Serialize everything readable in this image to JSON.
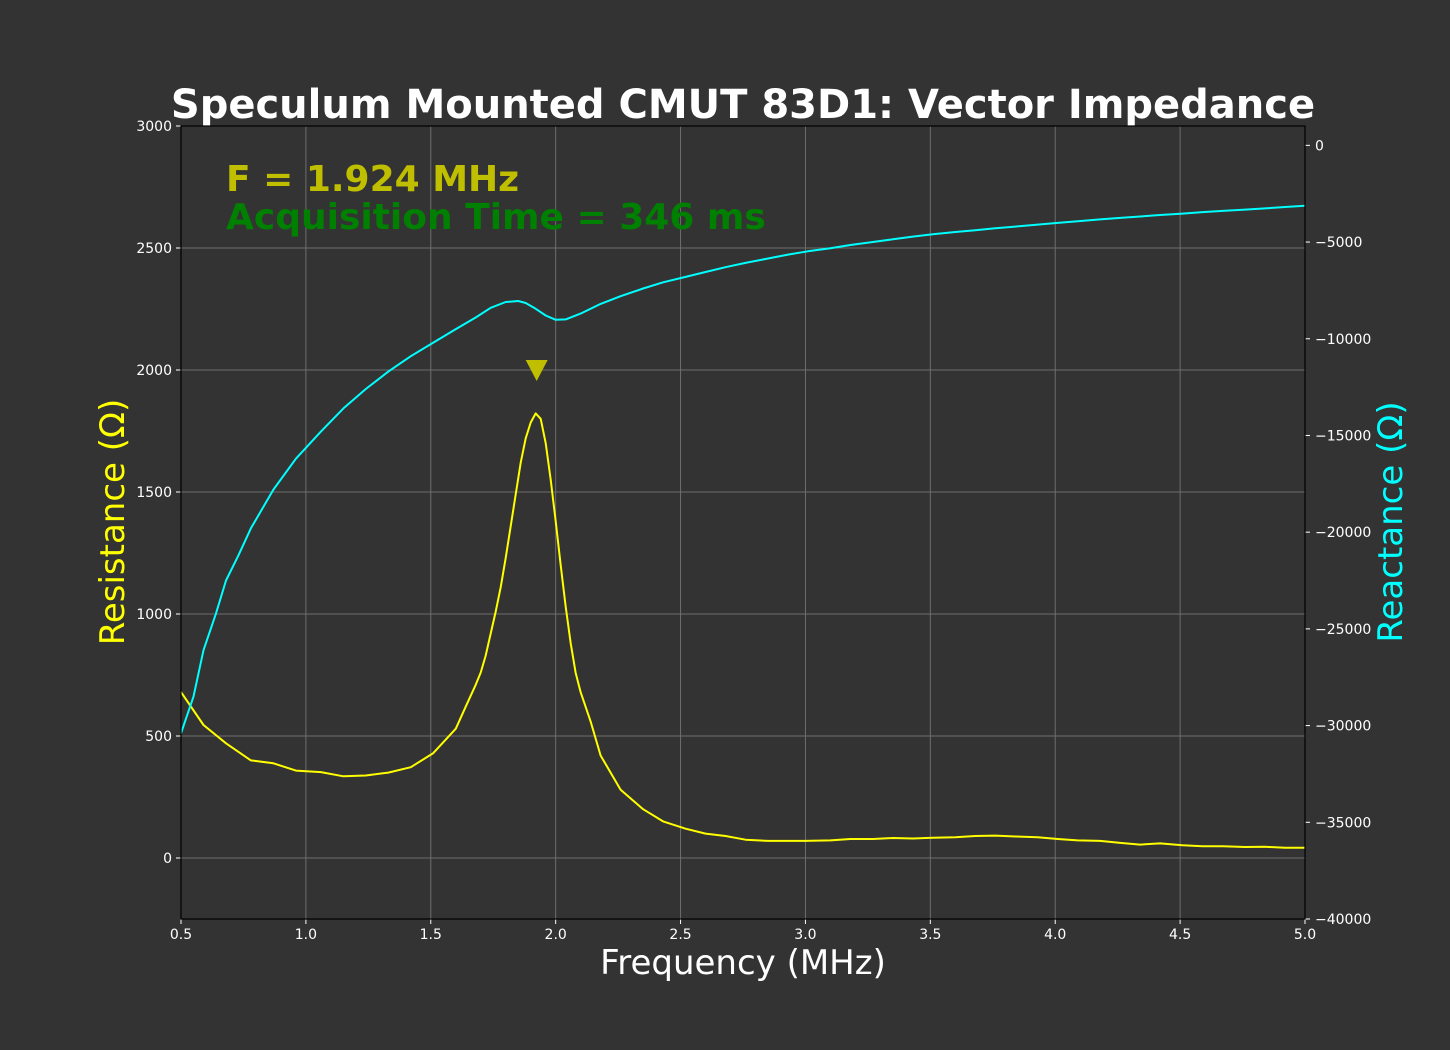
{
  "chart_data": {
    "type": "line",
    "title": "Speculum Mounted CMUT 83D1: Vector Impedance",
    "xlabel": "Frequency (MHz)",
    "ylabel": "Resistance (Ω)",
    "y2label": "Reactance (Ω)",
    "xlim": [
      0.5,
      5.0
    ],
    "ylim": [
      -250,
      3000
    ],
    "y2lim": [
      -40000,
      1000
    ],
    "x_ticks": [
      "0.5",
      "1.0",
      "1.5",
      "2.0",
      "2.5",
      "3.0",
      "3.5",
      "4.0",
      "4.5",
      "5.0"
    ],
    "y_ticks": [
      "0",
      "500",
      "1000",
      "1500",
      "2000",
      "2500",
      "3000"
    ],
    "y2_ticks": [
      "0",
      "−5000",
      "−10000",
      "−15000",
      "−20000",
      "−25000",
      "−30000",
      "−35000",
      "−40000"
    ],
    "grid": true,
    "colors": {
      "background": "#333333",
      "resistance": "#ffff00",
      "reactance": "#00ffff",
      "frequency_annotation": "#bfbf00",
      "marker": "#bfbf00",
      "acquisition_annotation": "#008000",
      "grid": "#6e6e6e"
    },
    "annotations": {
      "frequency": "F = 1.924 MHz",
      "acquisition": "Acquisition Time = 346 ms"
    },
    "marker": {
      "x": 1.924,
      "y": 2000,
      "shape": "triangle-down"
    },
    "series": [
      {
        "name": "Resistance",
        "axis": "left",
        "points": [
          [
            0.5,
            680
          ],
          [
            0.59,
            545
          ],
          [
            0.68,
            470
          ],
          [
            0.78,
            400
          ],
          [
            0.87,
            388
          ],
          [
            0.96,
            358
          ],
          [
            1.06,
            352
          ],
          [
            1.15,
            335
          ],
          [
            1.24,
            338
          ],
          [
            1.33,
            350
          ],
          [
            1.42,
            372
          ],
          [
            1.51,
            430
          ],
          [
            1.6,
            530
          ],
          [
            1.64,
            620
          ],
          [
            1.68,
            710
          ],
          [
            1.7,
            760
          ],
          [
            1.72,
            830
          ],
          [
            1.74,
            920
          ],
          [
            1.76,
            1010
          ],
          [
            1.78,
            1110
          ],
          [
            1.8,
            1230
          ],
          [
            1.82,
            1360
          ],
          [
            1.84,
            1490
          ],
          [
            1.86,
            1620
          ],
          [
            1.88,
            1720
          ],
          [
            1.9,
            1785
          ],
          [
            1.92,
            1822
          ],
          [
            1.94,
            1800
          ],
          [
            1.96,
            1700
          ],
          [
            1.98,
            1550
          ],
          [
            2.0,
            1380
          ],
          [
            2.02,
            1200
          ],
          [
            2.04,
            1030
          ],
          [
            2.06,
            880
          ],
          [
            2.08,
            760
          ],
          [
            2.1,
            680
          ],
          [
            2.14,
            560
          ],
          [
            2.18,
            420
          ],
          [
            2.26,
            280
          ],
          [
            2.35,
            200
          ],
          [
            2.43,
            150
          ],
          [
            2.52,
            120
          ],
          [
            2.6,
            100
          ],
          [
            2.68,
            90
          ],
          [
            2.76,
            75
          ],
          [
            2.85,
            70
          ],
          [
            3.0,
            70
          ],
          [
            3.1,
            72
          ],
          [
            3.18,
            78
          ],
          [
            3.27,
            78
          ],
          [
            3.35,
            82
          ],
          [
            3.43,
            80
          ],
          [
            3.51,
            83
          ],
          [
            3.6,
            85
          ],
          [
            3.68,
            90
          ],
          [
            3.76,
            92
          ],
          [
            3.84,
            88
          ],
          [
            3.93,
            85
          ],
          [
            4.01,
            78
          ],
          [
            4.09,
            72
          ],
          [
            4.18,
            70
          ],
          [
            4.26,
            62
          ],
          [
            4.34,
            55
          ],
          [
            4.42,
            60
          ],
          [
            4.51,
            52
          ],
          [
            4.59,
            48
          ],
          [
            4.67,
            48
          ],
          [
            4.76,
            45
          ],
          [
            4.84,
            46
          ],
          [
            4.92,
            42
          ],
          [
            5.0,
            42
          ]
        ]
      },
      {
        "name": "Reactance",
        "axis": "right",
        "points": [
          [
            0.5,
            -30400
          ],
          [
            0.55,
            -28500
          ],
          [
            0.59,
            -26100
          ],
          [
            0.64,
            -24200
          ],
          [
            0.68,
            -22500
          ],
          [
            0.73,
            -21200
          ],
          [
            0.78,
            -19800
          ],
          [
            0.87,
            -17800
          ],
          [
            0.96,
            -16200
          ],
          [
            1.06,
            -14800
          ],
          [
            1.15,
            -13600
          ],
          [
            1.24,
            -12600
          ],
          [
            1.33,
            -11700
          ],
          [
            1.42,
            -10900
          ],
          [
            1.51,
            -10200
          ],
          [
            1.6,
            -9500
          ],
          [
            1.68,
            -8900
          ],
          [
            1.74,
            -8400
          ],
          [
            1.8,
            -8100
          ],
          [
            1.85,
            -8050
          ],
          [
            1.88,
            -8150
          ],
          [
            1.92,
            -8450
          ],
          [
            1.96,
            -8800
          ],
          [
            2.0,
            -9020
          ],
          [
            2.04,
            -9000
          ],
          [
            2.1,
            -8700
          ],
          [
            2.18,
            -8200
          ],
          [
            2.26,
            -7800
          ],
          [
            2.35,
            -7400
          ],
          [
            2.43,
            -7080
          ],
          [
            2.52,
            -6800
          ],
          [
            2.6,
            -6550
          ],
          [
            2.68,
            -6300
          ],
          [
            2.76,
            -6080
          ],
          [
            2.85,
            -5850
          ],
          [
            2.93,
            -5650
          ],
          [
            3.01,
            -5480
          ],
          [
            3.1,
            -5320
          ],
          [
            3.18,
            -5150
          ],
          [
            3.27,
            -5000
          ],
          [
            3.35,
            -4860
          ],
          [
            3.43,
            -4720
          ],
          [
            3.51,
            -4600
          ],
          [
            3.6,
            -4480
          ],
          [
            3.68,
            -4390
          ],
          [
            3.76,
            -4290
          ],
          [
            3.84,
            -4200
          ],
          [
            3.93,
            -4100
          ],
          [
            4.01,
            -4010
          ],
          [
            4.09,
            -3920
          ],
          [
            4.18,
            -3830
          ],
          [
            4.26,
            -3750
          ],
          [
            4.34,
            -3680
          ],
          [
            4.42,
            -3600
          ],
          [
            4.51,
            -3530
          ],
          [
            4.59,
            -3450
          ],
          [
            4.67,
            -3390
          ],
          [
            4.76,
            -3320
          ],
          [
            4.84,
            -3260
          ],
          [
            4.92,
            -3190
          ],
          [
            5.0,
            -3120
          ]
        ]
      }
    ]
  }
}
